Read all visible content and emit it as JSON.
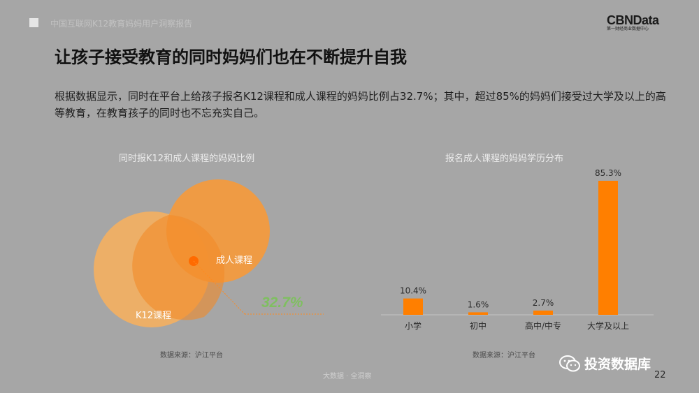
{
  "header": {
    "caption": "中国互联网K12教育妈妈用户洞察报告",
    "logo_main": "CBNData",
    "logo_sub": "第一财经商业数据中心"
  },
  "title": "让孩子接受教育的同时妈妈们也在不断提升自我",
  "description": "根据数据显示，同时在平台上给孩子报名K12课程和成人课程的妈妈比例占32.7%；其中，超过85%的妈妈们接受过大学及以上的高等教育，在教育孩子的同时也不忘充实自己。",
  "chart_data": [
    {
      "type": "venn",
      "title": "同时报K12和成人课程的妈妈比例",
      "sets": [
        {
          "name": "K12课程",
          "color": "#f5b060"
        },
        {
          "name": "成人课程",
          "color": "#f59a3c"
        }
      ],
      "intersection_value": "32.7%",
      "source": "数据来源：沪江平台"
    },
    {
      "type": "bar",
      "title": "报名成人课程的妈妈学历分布",
      "categories": [
        "小学",
        "初中",
        "高中/中专",
        "大学及以上"
      ],
      "values": [
        10.4,
        1.6,
        2.7,
        85.3
      ],
      "labels": [
        "10.4%",
        "1.6%",
        "2.7%",
        "85.3%"
      ],
      "ylim": [
        0,
        85.3
      ],
      "color": "#ff7f00",
      "source": "数据来源：沪江平台"
    }
  ],
  "footer": {
    "center": "大数据 · 全洞察",
    "watermark": "投资数据库",
    "page_number": "22"
  }
}
